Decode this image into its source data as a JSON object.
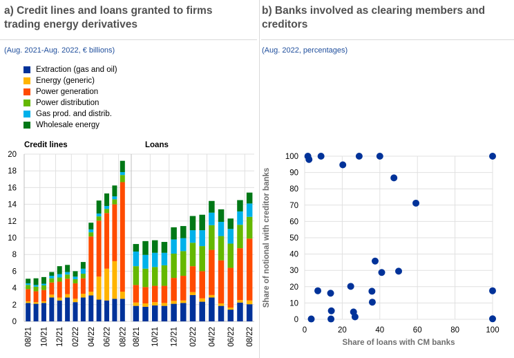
{
  "panel_a": {
    "title_line1": "a) Credit lines and loans granted to firms",
    "title_line2": "trading energy derivatives",
    "subtitle": "(Aug. 2021-Aug. 2022, € billions)"
  },
  "panel_b": {
    "title_line1": "b) Banks involved as clearing members and",
    "title_line2": "creditors",
    "subtitle": "(Aug. 2022, percentages)"
  },
  "chart_data": [
    {
      "type": "bar",
      "stacked": true,
      "panels": [
        "Credit lines",
        "Loans"
      ],
      "categories": [
        "08/21",
        "09/21",
        "10/21",
        "11/21",
        "12/21",
        "01/22",
        "02/22",
        "03/22",
        "04/22",
        "05/22",
        "06/22",
        "07/22",
        "08/22"
      ],
      "tick_labels": [
        "08/21",
        "10/21",
        "12/21",
        "02/22",
        "04/22",
        "06/22",
        "08/22"
      ],
      "ylim": [
        0,
        20
      ],
      "yticks": [
        "0",
        "2",
        "4",
        "6",
        "8",
        "10",
        "12",
        "14",
        "16",
        "18",
        "20"
      ],
      "legend_position": "top-left",
      "series": [
        {
          "name": "Extraction (gas and oil)",
          "color": "#003299",
          "credit_lines": [
            2.2,
            2.1,
            2.2,
            2.85,
            2.5,
            2.85,
            2.3,
            2.85,
            3.1,
            2.6,
            2.5,
            2.7,
            2.7
          ],
          "loans": [
            1.85,
            1.75,
            1.9,
            1.85,
            2.1,
            2.2,
            3.15,
            2.35,
            2.85,
            1.85,
            1.4,
            2.25,
            2.05
          ]
        },
        {
          "name": "Energy (generic)",
          "color": "#FFB400",
          "credit_lines": [
            0.2,
            0.2,
            0.2,
            0.35,
            0.35,
            0.4,
            0.4,
            0.45,
            0.45,
            2.75,
            3.8,
            4.5,
            0.85
          ],
          "loans": [
            0.4,
            0.4,
            0.4,
            0.35,
            0.35,
            0.3,
            0.35,
            0.4,
            0.3,
            0.3,
            0.25,
            0.3,
            0.45
          ]
        },
        {
          "name": "Power generation",
          "color": "#FF4B00",
          "credit_lines": [
            1.45,
            1.3,
            1.35,
            1.45,
            1.9,
            1.85,
            1.85,
            1.85,
            6.6,
            6.7,
            6.65,
            6.8,
            13.1
          ],
          "loans": [
            2.1,
            1.95,
            1.95,
            2.05,
            2.75,
            2.95,
            3.1,
            3.25,
            5.4,
            5.15,
            4.75,
            6.2,
            7.4
          ]
        },
        {
          "name": "Power distribution",
          "color": "#65B800",
          "credit_lines": [
            0.5,
            0.55,
            0.55,
            0.5,
            0.5,
            0.5,
            0.5,
            0.55,
            0.5,
            0.5,
            0.5,
            0.6,
            0.85
          ],
          "loans": [
            2.25,
            2.2,
            2.25,
            2.45,
            2.9,
            2.95,
            2.8,
            3.0,
            2.95,
            2.9,
            2.9,
            2.8,
            2.6
          ]
        },
        {
          "name": "Gas prod. and distrib.",
          "color": "#00B1EA",
          "credit_lines": [
            0.2,
            0.2,
            0.2,
            0.3,
            0.4,
            0.3,
            0.3,
            0.6,
            0.35,
            0.35,
            0.35,
            0.35,
            0.35
          ],
          "loans": [
            1.75,
            1.65,
            1.7,
            1.5,
            1.7,
            1.55,
            1.5,
            1.9,
            1.5,
            1.7,
            1.75,
            1.6,
            1.6
          ]
        },
        {
          "name": "Wholesale energy",
          "color": "#007816",
          "credit_lines": [
            0.55,
            0.8,
            0.8,
            0.45,
            0.95,
            0.85,
            0.65,
            0.8,
            0.8,
            1.55,
            1.5,
            1.3,
            1.35
          ],
          "loans": [
            0.9,
            1.65,
            1.5,
            1.3,
            1.45,
            1.45,
            1.7,
            1.85,
            1.4,
            1.5,
            1.25,
            1.35,
            1.3
          ]
        }
      ]
    },
    {
      "type": "scatter",
      "xlabel": "Share of loans with CM banks",
      "ylabel": "Share of notional with creditor banks",
      "xlim": [
        0,
        100
      ],
      "ylim": [
        0,
        100
      ],
      "xticks": [
        "0",
        "20",
        "40",
        "60",
        "80",
        "100"
      ],
      "yticks": [
        "0",
        "10",
        "20",
        "30",
        "40",
        "50",
        "60",
        "70",
        "80",
        "90",
        "100"
      ],
      "color": "#003299",
      "points": [
        [
          1.7,
          100
        ],
        [
          2.3,
          98
        ],
        [
          8.7,
          100
        ],
        [
          20.3,
          94.7
        ],
        [
          29,
          100
        ],
        [
          40,
          100
        ],
        [
          47.5,
          86.7
        ],
        [
          59.2,
          71.2
        ],
        [
          100,
          100
        ],
        [
          37.5,
          35.7
        ],
        [
          41,
          28.7
        ],
        [
          50,
          29.5
        ],
        [
          24.5,
          20.2
        ],
        [
          7,
          17.5
        ],
        [
          13.8,
          16
        ],
        [
          35.8,
          17.2
        ],
        [
          36,
          10.5
        ],
        [
          14.2,
          5.2
        ],
        [
          26,
          4.5
        ],
        [
          26.8,
          1.5
        ],
        [
          3.5,
          0.2
        ],
        [
          14,
          0.2
        ],
        [
          100,
          17.5
        ],
        [
          100,
          0.3
        ]
      ]
    }
  ]
}
